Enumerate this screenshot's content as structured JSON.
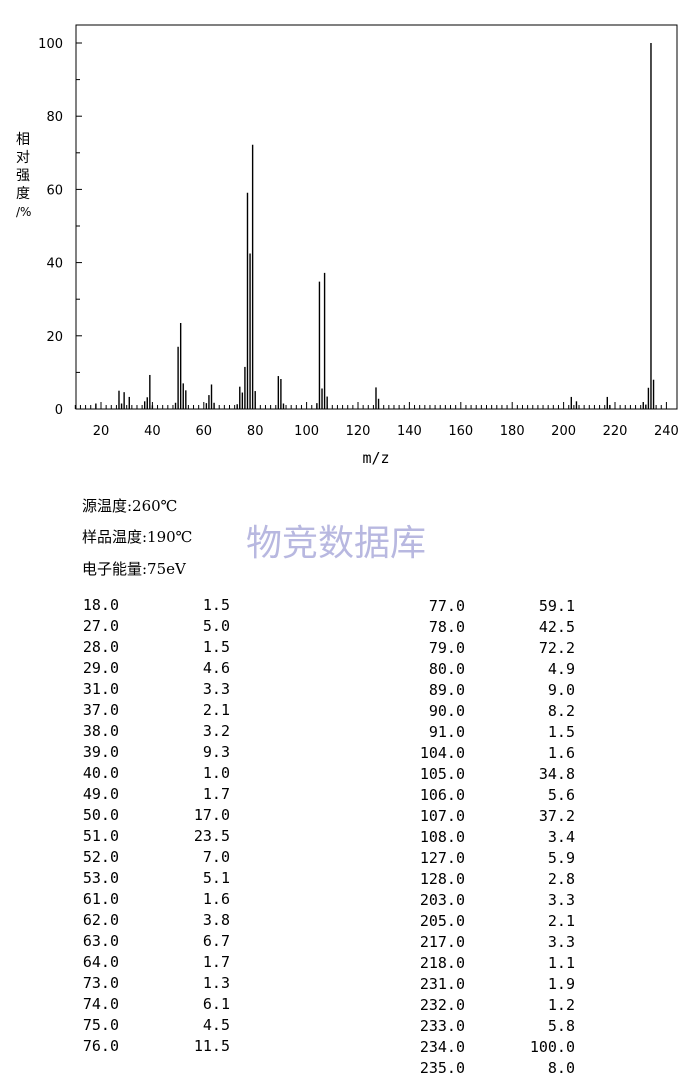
{
  "chart_data": {
    "type": "bar",
    "xlabel": "m/z",
    "ylabel": "相对强度/%",
    "xlim": [
      10,
      240
    ],
    "ylim": [
      0,
      100
    ],
    "x_ticks": [
      20,
      40,
      60,
      80,
      100,
      120,
      140,
      160,
      180,
      200,
      220,
      240
    ],
    "y_ticks": [
      0,
      20,
      40,
      60,
      80,
      100
    ],
    "grid": false,
    "x": [
      18,
      27,
      28,
      29,
      31,
      37,
      38,
      39,
      40,
      49,
      50,
      51,
      52,
      53,
      61,
      62,
      63,
      64,
      73,
      74,
      75,
      76,
      77,
      78,
      79,
      80,
      89,
      90,
      91,
      104,
      105,
      106,
      107,
      108,
      127,
      128,
      203,
      205,
      217,
      218,
      231,
      232,
      233,
      234,
      235
    ],
    "values": [
      1.5,
      5.0,
      1.5,
      4.6,
      3.3,
      2.1,
      3.2,
      9.3,
      1.0,
      1.7,
      17.0,
      23.5,
      7.0,
      5.1,
      1.6,
      3.8,
      6.7,
      1.7,
      1.3,
      6.1,
      4.5,
      11.5,
      59.1,
      42.5,
      72.2,
      4.9,
      9.0,
      8.2,
      1.5,
      1.6,
      34.8,
      5.6,
      37.2,
      3.4,
      5.9,
      2.8,
      3.3,
      2.1,
      3.3,
      1.1,
      1.9,
      1.2,
      5.8,
      100.0,
      8.0
    ]
  },
  "ylabel_chars": [
    "相",
    "对",
    "强",
    "度",
    "/%"
  ],
  "conditions": {
    "source_temp": "源温度:260℃",
    "sample_temp": "样品温度:190℃",
    "energy": "电子能量:75eV"
  },
  "watermark": "物竞数据库",
  "table_left": [
    [
      "18.0",
      "1.5"
    ],
    [
      "27.0",
      "5.0"
    ],
    [
      "28.0",
      "1.5"
    ],
    [
      "29.0",
      "4.6"
    ],
    [
      "31.0",
      "3.3"
    ],
    [
      "37.0",
      "2.1"
    ],
    [
      "38.0",
      "3.2"
    ],
    [
      "39.0",
      "9.3"
    ],
    [
      "40.0",
      "1.0"
    ],
    [
      "49.0",
      "1.7"
    ],
    [
      "50.0",
      "17.0"
    ],
    [
      "51.0",
      "23.5"
    ],
    [
      "52.0",
      "7.0"
    ],
    [
      "53.0",
      "5.1"
    ],
    [
      "61.0",
      "1.6"
    ],
    [
      "62.0",
      "3.8"
    ],
    [
      "63.0",
      "6.7"
    ],
    [
      "64.0",
      "1.7"
    ],
    [
      "73.0",
      "1.3"
    ],
    [
      "74.0",
      "6.1"
    ],
    [
      "75.0",
      "4.5"
    ],
    [
      "76.0",
      "11.5"
    ]
  ],
  "table_right": [
    [
      "77.0",
      "59.1"
    ],
    [
      "78.0",
      "42.5"
    ],
    [
      "79.0",
      "72.2"
    ],
    [
      "80.0",
      "4.9"
    ],
    [
      "89.0",
      "9.0"
    ],
    [
      "90.0",
      "8.2"
    ],
    [
      "91.0",
      "1.5"
    ],
    [
      "104.0",
      "1.6"
    ],
    [
      "105.0",
      "34.8"
    ],
    [
      "106.0",
      "5.6"
    ],
    [
      "107.0",
      "37.2"
    ],
    [
      "108.0",
      "3.4"
    ],
    [
      "127.0",
      "5.9"
    ],
    [
      "128.0",
      "2.8"
    ],
    [
      "203.0",
      "3.3"
    ],
    [
      "205.0",
      "2.1"
    ],
    [
      "217.0",
      "3.3"
    ],
    [
      "218.0",
      "1.1"
    ],
    [
      "231.0",
      "1.9"
    ],
    [
      "232.0",
      "1.2"
    ],
    [
      "233.0",
      "5.8"
    ],
    [
      "234.0",
      "100.0"
    ],
    [
      "235.0",
      "8.0"
    ]
  ]
}
